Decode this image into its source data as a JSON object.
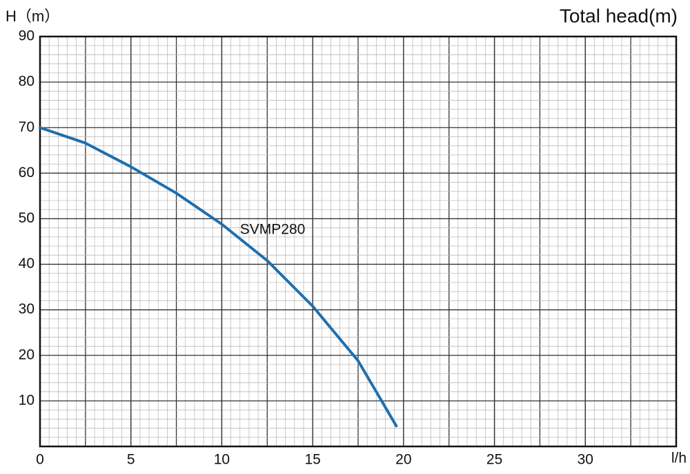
{
  "chart_data": {
    "type": "line",
    "title": "Total head(m)",
    "y_label": "H（m）",
    "x_label": "l/h",
    "x": [
      0,
      2.5,
      5,
      7.5,
      10,
      12.5,
      15,
      17.5,
      18.5,
      19.6
    ],
    "series": [
      {
        "name": "SVMP280",
        "color": "#1f6fad",
        "values": [
          70,
          66.6,
          61.4,
          55.6,
          48.8,
          40.8,
          30.8,
          18.8,
          12,
          4.5
        ]
      }
    ],
    "xlim": [
      0,
      35
    ],
    "xticks": [
      0,
      5,
      10,
      15,
      20,
      25,
      30
    ],
    "ylim": [
      0,
      90
    ],
    "yticks": [
      10,
      20,
      30,
      40,
      50,
      60,
      70,
      80,
      90
    ],
    "grid": true,
    "minor_grid": true
  }
}
